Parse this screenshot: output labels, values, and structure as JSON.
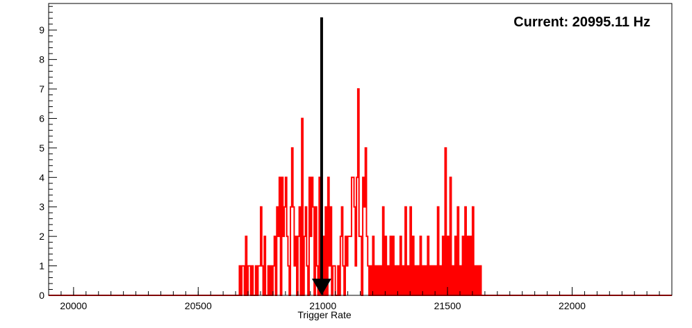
{
  "chart_data": {
    "type": "histogram",
    "title": "",
    "xlabel": "Trigger Rate",
    "ylabel": "",
    "xlim": [
      19900,
      22400
    ],
    "ylim": [
      0,
      9.9
    ],
    "grid": false,
    "legend": "none",
    "x_ticks": [
      20000,
      20500,
      21000,
      21500,
      22000
    ],
    "y_ticks": [
      0,
      1,
      2,
      3,
      4,
      5,
      6,
      7,
      8,
      9
    ],
    "annotation": {
      "text": "Current: 20995.11 Hz",
      "arrow_x": 20995.11
    },
    "series": [
      {
        "color": "#ff0000",
        "points": [
          [
            20665,
            1
          ],
          [
            20675,
            1
          ],
          [
            20680,
            1
          ],
          [
            20690,
            2
          ],
          [
            20693,
            1
          ],
          [
            20700,
            1
          ],
          [
            20705,
            1
          ],
          [
            20715,
            1
          ],
          [
            20730,
            1
          ],
          [
            20740,
            1
          ],
          [
            20745,
            1
          ],
          [
            20750,
            3
          ],
          [
            20755,
            1
          ],
          [
            20765,
            2
          ],
          [
            20780,
            1
          ],
          [
            20790,
            1
          ],
          [
            20800,
            1
          ],
          [
            20805,
            2
          ],
          [
            20815,
            3
          ],
          [
            20820,
            2
          ],
          [
            20825,
            4
          ],
          [
            20835,
            4
          ],
          [
            20840,
            2
          ],
          [
            20845,
            3
          ],
          [
            20850,
            4
          ],
          [
            20855,
            2
          ],
          [
            20860,
            1
          ],
          [
            20870,
            3
          ],
          [
            20875,
            5
          ],
          [
            20880,
            3
          ],
          [
            20885,
            1
          ],
          [
            20890,
            2
          ],
          [
            20900,
            2
          ],
          [
            20905,
            3
          ],
          [
            20915,
            6
          ],
          [
            20925,
            2
          ],
          [
            20930,
            3
          ],
          [
            20935,
            1
          ],
          [
            20945,
            4
          ],
          [
            20950,
            2
          ],
          [
            20955,
            4
          ],
          [
            20960,
            3
          ],
          [
            20970,
            3
          ],
          [
            20975,
            1
          ],
          [
            20985,
            4
          ],
          [
            21000,
            2
          ],
          [
            21010,
            3
          ],
          [
            21020,
            4
          ],
          [
            21025,
            1
          ],
          [
            21030,
            3
          ],
          [
            21040,
            1
          ],
          [
            21045,
            1
          ],
          [
            21060,
            1
          ],
          [
            21070,
            2
          ],
          [
            21075,
            3
          ],
          [
            21080,
            1
          ],
          [
            21090,
            2
          ],
          [
            21095,
            1
          ],
          [
            21100,
            2
          ],
          [
            21105,
            2
          ],
          [
            21110,
            2
          ],
          [
            21115,
            4
          ],
          [
            21120,
            4
          ],
          [
            21125,
            3
          ],
          [
            21130,
            1
          ],
          [
            21135,
            4
          ],
          [
            21140,
            7
          ],
          [
            21145,
            2
          ],
          [
            21150,
            2
          ],
          [
            21160,
            4
          ],
          [
            21165,
            3
          ],
          [
            21170,
            5
          ],
          [
            21175,
            2
          ],
          [
            21180,
            1
          ],
          [
            21190,
            1
          ],
          [
            21200,
            2
          ],
          [
            21210,
            1
          ],
          [
            21220,
            1
          ],
          [
            21230,
            1
          ],
          [
            21240,
            3
          ],
          [
            21250,
            2
          ],
          [
            21260,
            1
          ],
          [
            21270,
            2
          ],
          [
            21280,
            2
          ],
          [
            21290,
            1
          ],
          [
            21300,
            1
          ],
          [
            21310,
            2
          ],
          [
            21320,
            1
          ],
          [
            21330,
            3
          ],
          [
            21340,
            1
          ],
          [
            21350,
            3
          ],
          [
            21360,
            2
          ],
          [
            21370,
            1
          ],
          [
            21380,
            1
          ],
          [
            21390,
            2
          ],
          [
            21400,
            1
          ],
          [
            21410,
            1
          ],
          [
            21420,
            2
          ],
          [
            21430,
            1
          ],
          [
            21440,
            1
          ],
          [
            21450,
            1
          ],
          [
            21460,
            3
          ],
          [
            21470,
            1
          ],
          [
            21480,
            2
          ],
          [
            21490,
            5
          ],
          [
            21500,
            2
          ],
          [
            21510,
            4
          ],
          [
            21520,
            1
          ],
          [
            21530,
            2
          ],
          [
            21540,
            3
          ],
          [
            21550,
            1
          ],
          [
            21560,
            2
          ],
          [
            21570,
            3
          ],
          [
            21580,
            2
          ],
          [
            21590,
            2
          ],
          [
            21600,
            3
          ],
          [
            21610,
            1
          ],
          [
            21620,
            1
          ],
          [
            21630,
            1
          ]
        ]
      }
    ]
  }
}
